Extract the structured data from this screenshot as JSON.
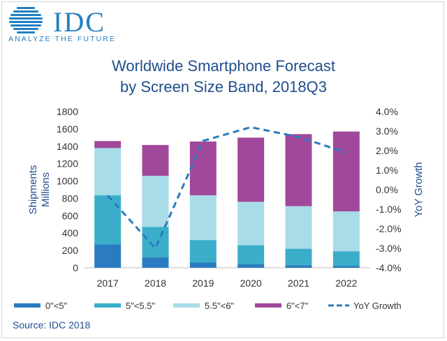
{
  "logo": {
    "brand": "IDC",
    "tagline": "ANALYZE THE FUTURE"
  },
  "title": {
    "line1": "Worldwide Smartphone Forecast",
    "line2": "by Screen Size Band, 2018Q3"
  },
  "source": "Source: IDC 2018",
  "colors": {
    "band1": "#2a7bc0",
    "band2": "#3aaec9",
    "band3": "#a8dce8",
    "band4": "#a0489a",
    "yoy": "#2a7bc0",
    "title": "#1f4e8c"
  },
  "chart_data": {
    "type": "bar",
    "stacked": true,
    "categories": [
      "2017",
      "2018",
      "2019",
      "2020",
      "2021",
      "2022"
    ],
    "series": [
      {
        "name": "0\"<5\"",
        "values": [
          270,
          120,
          60,
          40,
          30,
          20
        ]
      },
      {
        "name": "5\"<5.5\"",
        "values": [
          565,
          350,
          260,
          220,
          190,
          170
        ]
      },
      {
        "name": "5.5\"<6\"",
        "values": [
          545,
          590,
          515,
          500,
          490,
          460
        ]
      },
      {
        "name": "6\"<7\"",
        "values": [
          80,
          355,
          620,
          740,
          830,
          920
        ]
      }
    ],
    "line_series": {
      "name": "YoY Growth",
      "axis": "right",
      "values": [
        -0.3,
        -3.0,
        2.5,
        3.2,
        2.7,
        1.9
      ]
    },
    "ylabel_left": "Shipments\nMillions",
    "ylabel_right": "YoY Growth",
    "ylim_left": [
      0,
      1800
    ],
    "yticks_left": [
      "0",
      "200",
      "400",
      "600",
      "800",
      "1000",
      "1200",
      "1400",
      "1600",
      "1800"
    ],
    "ylim_right": [
      -4.0,
      4.0
    ],
    "yticks_right": [
      "-4.0%",
      "-3.0%",
      "-2.0%",
      "-1.0%",
      "0.0%",
      "1.0%",
      "2.0%",
      "3.0%",
      "4.0%"
    ],
    "legend": [
      "0\"<5\"",
      "5\"<5.5\"",
      "5.5\"<6\"",
      "6\"<7\"",
      "YoY Growth"
    ],
    "legend_position": "bottom",
    "grid": false
  }
}
